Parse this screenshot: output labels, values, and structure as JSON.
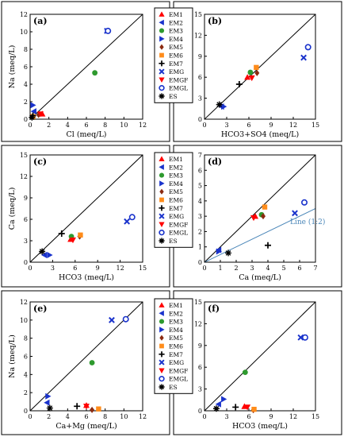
{
  "markers": {
    "EM1": {
      "shape": "triangle-up",
      "color": "#ff0000"
    },
    "EM2": {
      "shape": "triangle-left",
      "color": "#1a33cc"
    },
    "EM3": {
      "shape": "circle",
      "color": "#2e9a2e"
    },
    "EM4": {
      "shape": "triangle-right",
      "color": "#1a33cc"
    },
    "EM5": {
      "shape": "diamond",
      "color": "#8b2a10"
    },
    "EM6": {
      "shape": "square",
      "color": "#ff8c1a"
    },
    "EM7": {
      "shape": "plus",
      "color": "#000000"
    },
    "EMG": {
      "shape": "x",
      "color": "#1a33cc"
    },
    "EMGF": {
      "shape": "triangle-down",
      "color": "#ff0000"
    },
    "EMGL": {
      "shape": "circle-open",
      "color": "#1a33cc"
    },
    "ES": {
      "shape": "asterisk",
      "color": "#000000"
    }
  },
  "legend_entries": [
    "EM1",
    "EM2",
    "EM3",
    "EM4",
    "EM5",
    "EM6",
    "EM7",
    "EMG",
    "EMGF",
    "EMGL",
    "ES"
  ],
  "chart_data": [
    {
      "type": "scatter",
      "panel": "(a)",
      "xlabel": "Cl (meq/L)",
      "ylabel": "Na (meq/L)",
      "xlim": [
        0,
        12
      ],
      "ylim": [
        0,
        12
      ],
      "xticks": [
        0,
        2,
        4,
        6,
        8,
        10,
        12
      ],
      "yticks": [
        0,
        2,
        4,
        6,
        8,
        10,
        12
      ],
      "reference_line": "1:1",
      "series": [
        {
          "name": "EM1",
          "x": [
            1.3
          ],
          "y": [
            0.6
          ]
        },
        {
          "name": "EM2",
          "x": [
            0.4
          ],
          "y": [
            0.9
          ]
        },
        {
          "name": "EM3",
          "x": [
            6.9
          ],
          "y": [
            5.3
          ]
        },
        {
          "name": "EM4",
          "x": [
            0.3
          ],
          "y": [
            1.6
          ]
        },
        {
          "name": "EM5",
          "x": [
            0.9
          ],
          "y": [
            0.5
          ]
        },
        {
          "name": "EM6",
          "x": [
            0.3
          ],
          "y": [
            0.3
          ]
        },
        {
          "name": "EM7",
          "x": [
            0.3
          ],
          "y": [
            0.4
          ]
        },
        {
          "name": "EMG",
          "x": [
            8.2
          ],
          "y": [
            10.1
          ]
        },
        {
          "name": "EMGF",
          "x": [
            1.1
          ],
          "y": [
            0.6
          ]
        },
        {
          "name": "EMGL",
          "x": [
            8.3
          ],
          "y": [
            10.1
          ]
        },
        {
          "name": "ES",
          "x": [
            0.2
          ],
          "y": [
            0.2
          ]
        }
      ]
    },
    {
      "type": "scatter",
      "panel": "(b)",
      "xlabel": "HCO3+SO4 (meq/L)",
      "ylabel": "Ca+Mg (meq/L)",
      "xlim": [
        0,
        15
      ],
      "ylim": [
        0,
        15
      ],
      "xticks": [
        0,
        3,
        6,
        9,
        12,
        15
      ],
      "yticks": [
        0,
        3,
        6,
        9,
        12,
        15
      ],
      "reference_line": "1:1",
      "series": [
        {
          "name": "EM1",
          "x": [
            5.8
          ],
          "y": [
            6.0
          ]
        },
        {
          "name": "EM2",
          "x": [
            2.3
          ],
          "y": [
            1.8
          ]
        },
        {
          "name": "EM3",
          "x": [
            6.2
          ],
          "y": [
            6.7
          ]
        },
        {
          "name": "EM4",
          "x": [
            2.6
          ],
          "y": [
            1.8
          ]
        },
        {
          "name": "EM5",
          "x": [
            7.1
          ],
          "y": [
            6.6
          ]
        },
        {
          "name": "EM6",
          "x": [
            7.0
          ],
          "y": [
            7.4
          ]
        },
        {
          "name": "EM7",
          "x": [
            4.7
          ],
          "y": [
            5.0
          ]
        },
        {
          "name": "EMG",
          "x": [
            13.4
          ],
          "y": [
            8.8
          ]
        },
        {
          "name": "EMGF",
          "x": [
            6.4
          ],
          "y": [
            5.9
          ]
        },
        {
          "name": "EMGL",
          "x": [
            14.0
          ],
          "y": [
            10.3
          ]
        },
        {
          "name": "ES",
          "x": [
            2.0
          ],
          "y": [
            2.1
          ]
        }
      ]
    },
    {
      "type": "scatter",
      "panel": "(c)",
      "xlabel": "HCO3 (meq/L)",
      "ylabel": "Ca (meq/L)",
      "xlim": [
        0,
        15
      ],
      "ylim": [
        0,
        15
      ],
      "xticks": [
        0,
        3,
        6,
        9,
        12,
        15
      ],
      "yticks": [
        0,
        3,
        6,
        9,
        12,
        15
      ],
      "reference_line": "1:1",
      "series": [
        {
          "name": "EM1",
          "x": [
            5.4
          ],
          "y": [
            3.2
          ]
        },
        {
          "name": "EM2",
          "x": [
            1.9
          ],
          "y": [
            1.0
          ]
        },
        {
          "name": "EM3",
          "x": [
            5.5
          ],
          "y": [
            3.6
          ]
        },
        {
          "name": "EM4",
          "x": [
            2.6
          ],
          "y": [
            1.0
          ]
        },
        {
          "name": "EM5",
          "x": [
            6.6
          ],
          "y": [
            3.6
          ]
        },
        {
          "name": "EM6",
          "x": [
            6.7
          ],
          "y": [
            3.8
          ]
        },
        {
          "name": "EM7",
          "x": [
            4.2
          ],
          "y": [
            4.0
          ]
        },
        {
          "name": "EMG",
          "x": [
            12.9
          ],
          "y": [
            5.7
          ]
        },
        {
          "name": "EMGF",
          "x": [
            5.7
          ],
          "y": [
            3.1
          ]
        },
        {
          "name": "EMGL",
          "x": [
            13.6
          ],
          "y": [
            6.3
          ]
        },
        {
          "name": "ES",
          "x": [
            1.6
          ],
          "y": [
            1.5
          ]
        }
      ]
    },
    {
      "type": "scatter",
      "panel": "(d)",
      "xlabel": "Ca (meq/L)",
      "ylabel": "Mg (meq/L)",
      "xlim": [
        0,
        7
      ],
      "ylim": [
        0,
        7
      ],
      "xticks": [
        0,
        1,
        2,
        3,
        4,
        5,
        6,
        7
      ],
      "yticks": [
        0,
        1,
        2,
        3,
        4,
        5,
        6,
        7
      ],
      "reference_line": "1:1",
      "line_label": "Line (1:2)",
      "series": [
        {
          "name": "EM1",
          "x": [
            3.2
          ],
          "y": [
            3.0
          ]
        },
        {
          "name": "EM2",
          "x": [
            0.9
          ],
          "y": [
            0.8
          ]
        },
        {
          "name": "EM3",
          "x": [
            3.6
          ],
          "y": [
            3.1
          ]
        },
        {
          "name": "EM4",
          "x": [
            0.9
          ],
          "y": [
            0.7
          ]
        },
        {
          "name": "EM5",
          "x": [
            3.7
          ],
          "y": [
            3.0
          ]
        },
        {
          "name": "EM6",
          "x": [
            3.8
          ],
          "y": [
            3.6
          ]
        },
        {
          "name": "EM7",
          "x": [
            4.0
          ],
          "y": [
            1.1
          ]
        },
        {
          "name": "EMG",
          "x": [
            5.7
          ],
          "y": [
            3.2
          ]
        },
        {
          "name": "EMGF",
          "x": [
            3.1
          ],
          "y": [
            2.9
          ]
        },
        {
          "name": "EMGL",
          "x": [
            6.3
          ],
          "y": [
            3.9
          ]
        },
        {
          "name": "ES",
          "x": [
            1.5
          ],
          "y": [
            0.6
          ]
        }
      ]
    },
    {
      "type": "scatter",
      "panel": "(e)",
      "xlabel": "Ca+Mg (meq/L)",
      "ylabel": "Na (meq/L)",
      "xlim": [
        0,
        12
      ],
      "ylim": [
        0,
        12
      ],
      "xticks": [
        0,
        2,
        4,
        6,
        8,
        10,
        12
      ],
      "yticks": [
        0,
        2,
        4,
        6,
        8,
        10,
        12
      ],
      "reference_line": "1:1",
      "series": [
        {
          "name": "EM1",
          "x": [
            6.0
          ],
          "y": [
            0.6
          ]
        },
        {
          "name": "EM2",
          "x": [
            1.8
          ],
          "y": [
            0.9
          ]
        },
        {
          "name": "EM3",
          "x": [
            6.6
          ],
          "y": [
            5.3
          ]
        },
        {
          "name": "EM4",
          "x": [
            1.9
          ],
          "y": [
            1.6
          ]
        },
        {
          "name": "EM5",
          "x": [
            6.6
          ],
          "y": [
            0.1
          ]
        },
        {
          "name": "EM6",
          "x": [
            7.3
          ],
          "y": [
            0.2
          ]
        },
        {
          "name": "EM7",
          "x": [
            5.0
          ],
          "y": [
            0.5
          ]
        },
        {
          "name": "EMG",
          "x": [
            8.7
          ],
          "y": [
            10.0
          ]
        },
        {
          "name": "EMGF",
          "x": [
            6.0
          ],
          "y": [
            0.5
          ]
        },
        {
          "name": "EMGL",
          "x": [
            10.2
          ],
          "y": [
            10.1
          ]
        },
        {
          "name": "ES",
          "x": [
            2.1
          ],
          "y": [
            0.3
          ]
        }
      ]
    },
    {
      "type": "scatter",
      "panel": "(f)",
      "xlabel": "HCO3 (meq/L)",
      "ylabel": "Na (meq/L)",
      "xlim": [
        0,
        15
      ],
      "ylim": [
        0,
        15
      ],
      "xticks": [
        0,
        3,
        6,
        9,
        12,
        15
      ],
      "yticks": [
        0,
        3,
        6,
        9,
        12,
        15
      ],
      "reference_line": "1:1",
      "series": [
        {
          "name": "EM1",
          "x": [
            5.4
          ],
          "y": [
            0.6
          ]
        },
        {
          "name": "EM2",
          "x": [
            1.9
          ],
          "y": [
            0.9
          ]
        },
        {
          "name": "EM3",
          "x": [
            5.5
          ],
          "y": [
            5.3
          ]
        },
        {
          "name": "EM4",
          "x": [
            2.6
          ],
          "y": [
            1.6
          ]
        },
        {
          "name": "EM5",
          "x": [
            6.6
          ],
          "y": [
            0.1
          ]
        },
        {
          "name": "EM6",
          "x": [
            6.7
          ],
          "y": [
            0.2
          ]
        },
        {
          "name": "EM7",
          "x": [
            4.2
          ],
          "y": [
            0.5
          ]
        },
        {
          "name": "EMG",
          "x": [
            13.0
          ],
          "y": [
            10.1
          ]
        },
        {
          "name": "EMGF",
          "x": [
            5.8
          ],
          "y": [
            0.5
          ]
        },
        {
          "name": "EMGL",
          "x": [
            13.6
          ],
          "y": [
            10.1
          ]
        },
        {
          "name": "ES",
          "x": [
            1.6
          ],
          "y": [
            0.3
          ]
        }
      ]
    }
  ]
}
